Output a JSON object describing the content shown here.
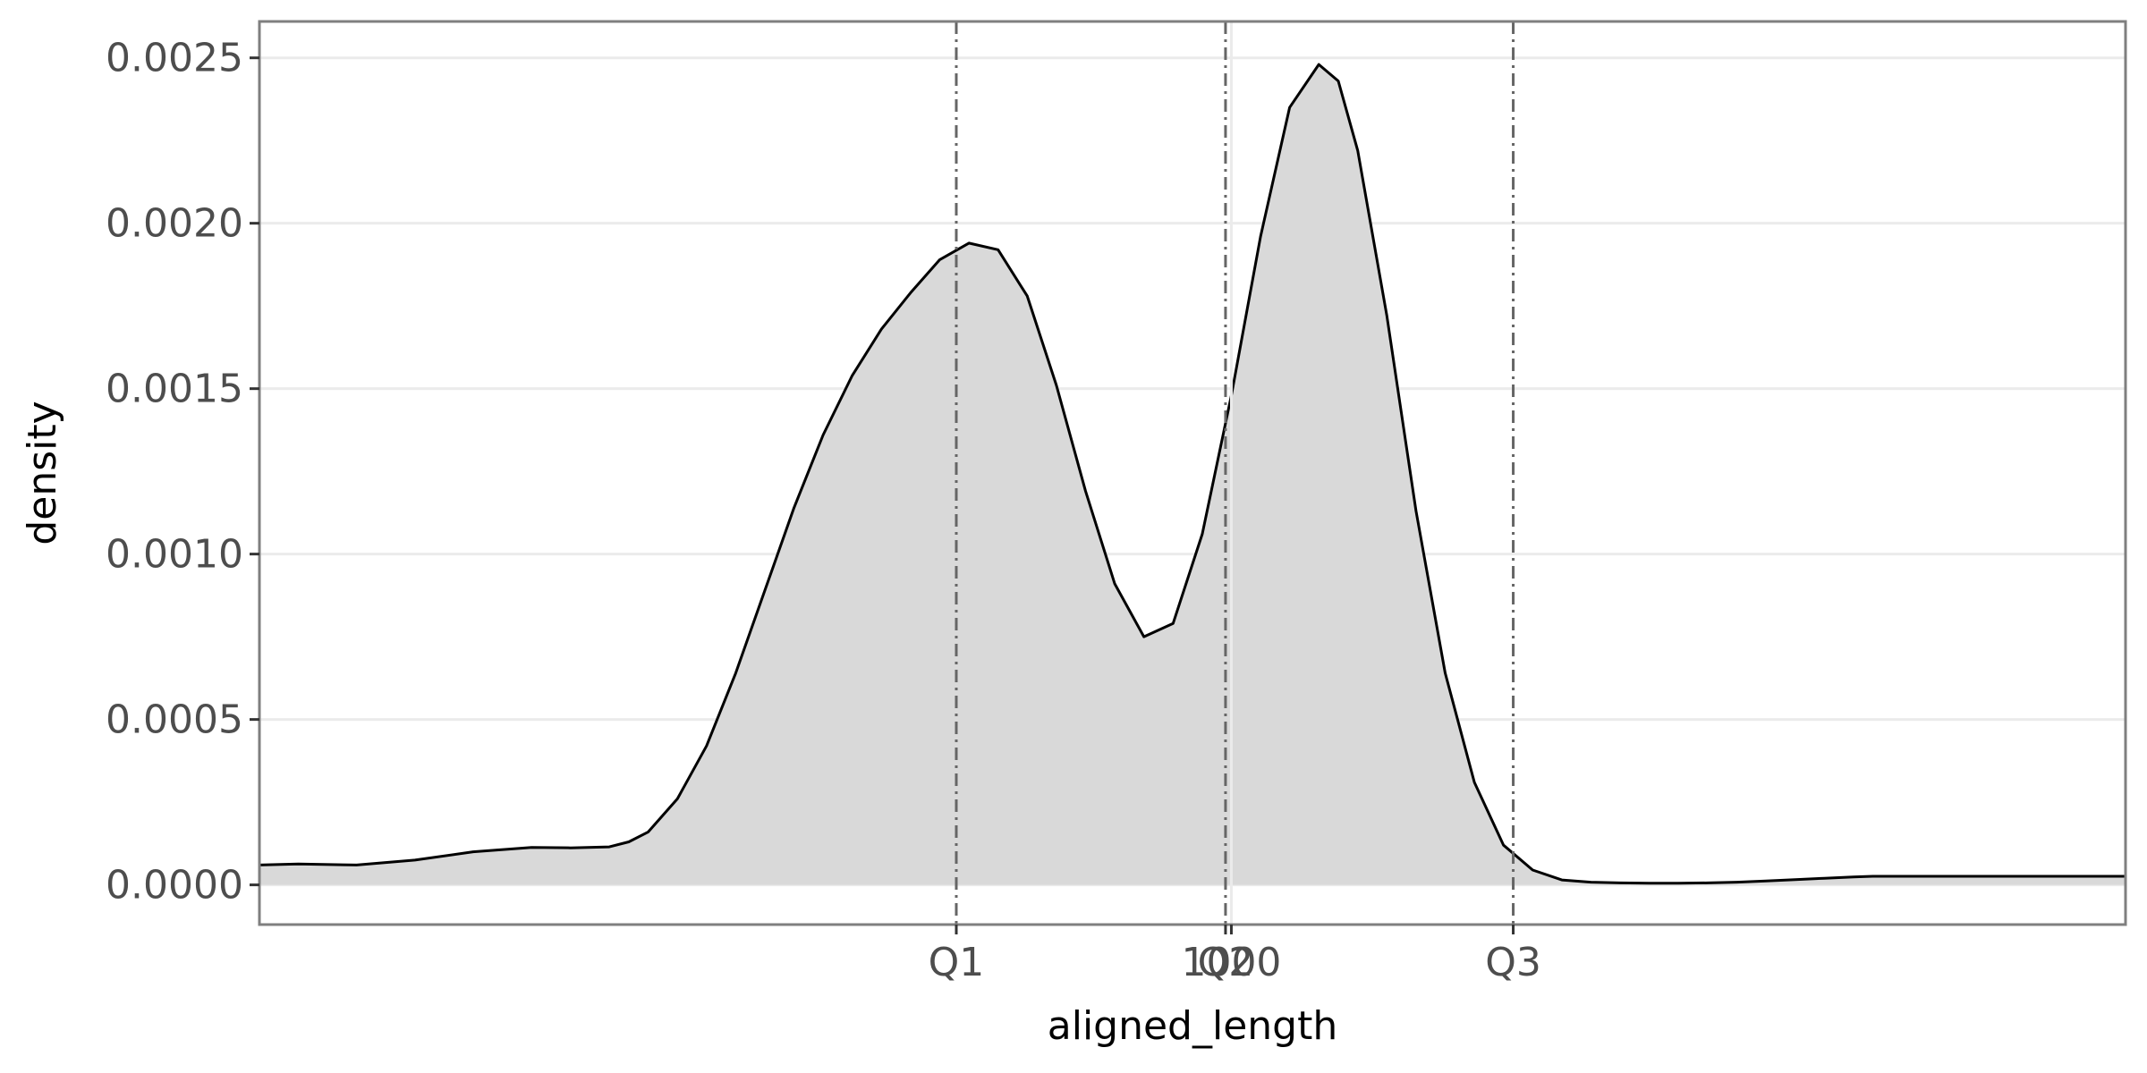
{
  "chart_data": {
    "type": "area",
    "title": "",
    "xlabel": "aligned_length",
    "ylabel": "density",
    "xlim": [
      0,
      1920
    ],
    "ylim": [
      -0.00012,
      0.00261
    ],
    "grid": true,
    "legend": "none",
    "colors": {
      "fill": "#d9d9d9",
      "line": "#000000",
      "grid": "#ebebeb",
      "frame": "#7f7f7f",
      "marker": "#666666"
    },
    "y_ticks": [
      {
        "value": 0.0,
        "label": "0.0000"
      },
      {
        "value": 0.0005,
        "label": "0.0005"
      },
      {
        "value": 0.001,
        "label": "0.0010"
      },
      {
        "value": 0.0015,
        "label": "0.0015"
      },
      {
        "value": 0.002,
        "label": "0.0020"
      },
      {
        "value": 0.0025,
        "label": "0.0025"
      }
    ],
    "x_markers": [
      {
        "value": 1000,
        "label": "1000",
        "style": "solid"
      },
      {
        "value": 717,
        "label": "Q1",
        "style": "dashdot"
      },
      {
        "value": 994,
        "label": "Q2",
        "style": "dashdot"
      },
      {
        "value": 1290,
        "label": "Q3",
        "style": "dashdot"
      }
    ],
    "series": [
      {
        "x": [
          0,
          40,
          100,
          160,
          220,
          280,
          320,
          360,
          380,
          400,
          430,
          460,
          490,
          520,
          550,
          580,
          610,
          640,
          670,
          700,
          730,
          760,
          790,
          820,
          850,
          880,
          910,
          940,
          970,
          1000,
          1030,
          1060,
          1090,
          1110,
          1130,
          1160,
          1190,
          1220,
          1250,
          1280,
          1310,
          1340,
          1370,
          1400,
          1430,
          1460,
          1490,
          1520,
          1550,
          1580,
          1610,
          1640,
          1660,
          1700,
          1760,
          1820,
          1880,
          1920
        ],
        "y": [
          6e-05,
          6.3e-05,
          6e-05,
          7.5e-05,
          0.0001,
          0.000113,
          0.000112,
          0.000115,
          0.00013,
          0.00016,
          0.00026,
          0.00042,
          0.00064,
          0.00089,
          0.00114,
          0.00136,
          0.00154,
          0.00168,
          0.00179,
          0.00189,
          0.00194,
          0.00192,
          0.00178,
          0.00151,
          0.00119,
          0.00091,
          0.00075,
          0.00079,
          0.00106,
          0.00148,
          0.00196,
          0.00235,
          0.00248,
          0.00243,
          0.00222,
          0.00172,
          0.00113,
          0.00064,
          0.00031,
          0.00012,
          4.5e-05,
          1.5e-05,
          8e-06,
          6e-06,
          5e-06,
          5e-06,
          6e-06,
          8e-06,
          1.2e-05,
          1.6e-05,
          2e-05,
          2.4e-05,
          2.6e-05,
          2.6e-05,
          2.6e-05,
          2.6e-05,
          2.6e-05,
          2.6e-05
        ]
      }
    ]
  }
}
